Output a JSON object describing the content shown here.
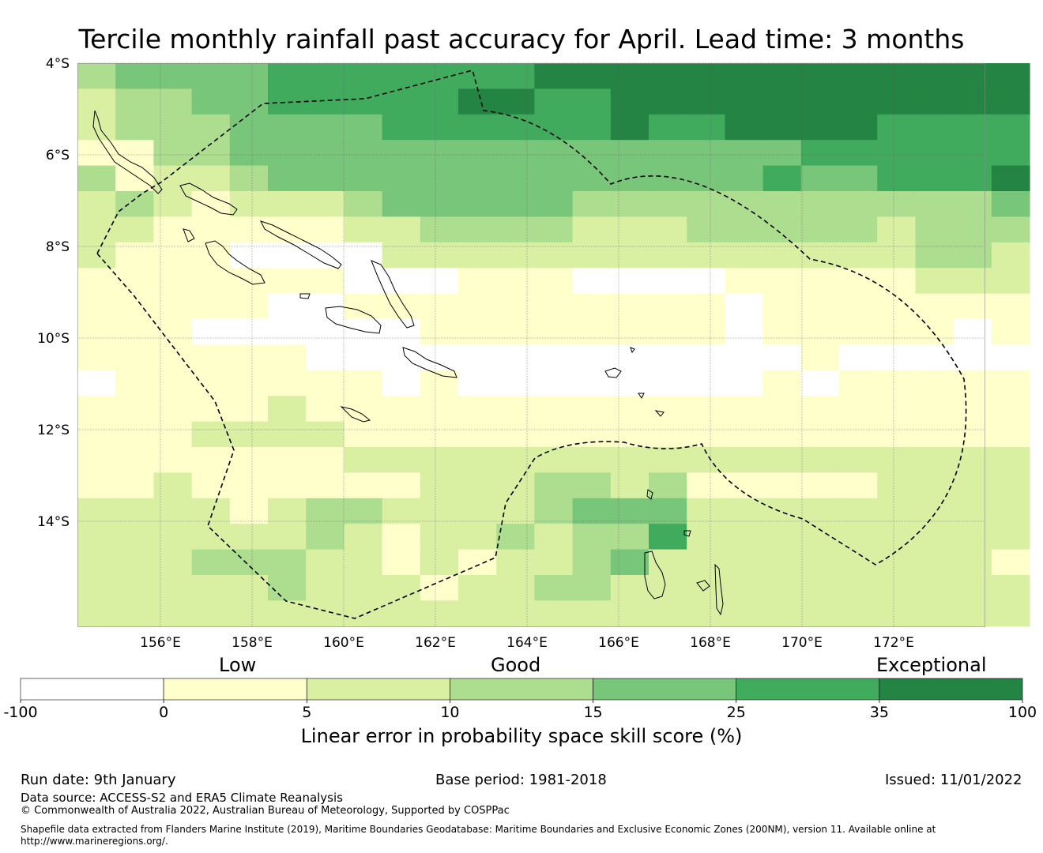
{
  "title": "Tercile monthly rainfall past accuracy for April. Lead time: 3 months",
  "map": {
    "lat_labels": [
      "4°S",
      "6°S",
      "8°S",
      "10°S",
      "12°S",
      "14°S"
    ],
    "lon_labels": [
      "156°E",
      "158°E",
      "160°E",
      "162°E",
      "164°E",
      "166°E",
      "168°E",
      "170°E",
      "172°E"
    ],
    "grid_rows": [
      "3444455555556666666666666",
      "2334455555665566666666666",
      "2333444455555565566665555",
      "1133444444444444444555555",
      "3122344444444444445445556",
      "2321222344444333333333334",
      "2211111223333222333332333",
      "2111000022222222222222332",
      "1111111000111000011111222",
      "1111100111111111101111111",
      "1110000001111111101111101",
      "1111110000000000000100000",
      "0111111101000000001011111",
      "1111121111111111111111111",
      "1112222111111111111111111",
      "1111111222222222222222222",
      "1121111112223323111112222",
      "2222123322223444222222222",
      "2222223212232335222222222",
      "2223332212122342222222221",
      "2222232221223322222222222",
      "2222222222222222222222222"
    ]
  },
  "categories": {
    "low": "Low",
    "good": "Good",
    "exceptional": "Exceptional"
  },
  "colorbar": {
    "ticks": [
      "-100",
      "0",
      "5",
      "10",
      "15",
      "25",
      "35",
      "100"
    ],
    "colors": [
      "#ffffff",
      "#ffffcc",
      "#d9f0a3",
      "#addd8e",
      "#78c679",
      "#41ab5d",
      "#238443"
    ],
    "label": "Linear error in probability space skill score (%)"
  },
  "footer": {
    "run_date": "Run date: 9th January",
    "base_period": "Base period: 1981-2018",
    "issued": "Issued: 11/01/2022",
    "data_source": "Data source: ACCESS-S2 and ERA5 Climate Reanalysis",
    "copyright": "© Commonwealth of Australia 2022, Australian Bureau of Meteorology, Supported by COSPPac",
    "shapefile_1": "Shapefile data extracted from Flanders Marine Institute (2019), Maritime Boundaries Geodatabase: Maritime Boundaries and Exclusive Economic Zones (200NM), version 11. Available online at",
    "shapefile_2": "http://www.marineregions.org/."
  }
}
